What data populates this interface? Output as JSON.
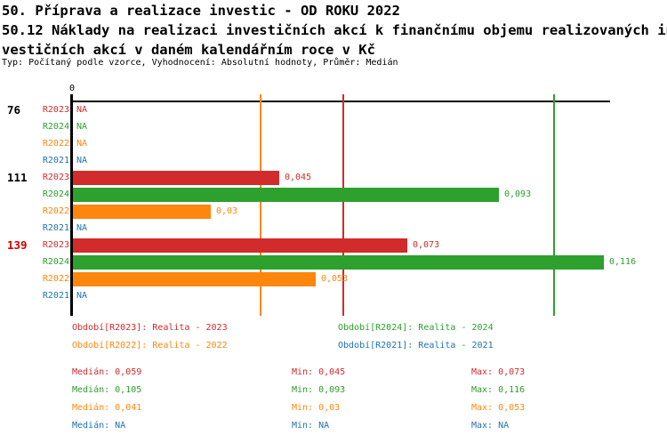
{
  "title": {
    "line1": "50. Příprava a realizace investic - OD ROKU 2022",
    "line2": "50.12 Náklady na realizaci investičních akcí k finančnímu objemu realizovaných in",
    "line3": "vestičních akcí v daném kalendářním roce v Kč",
    "meta": "Typ: Počítaný podle vzorce, Vyhodnocení: Absolutní hodnoty, Průměr: Medián"
  },
  "colors": {
    "title": "#008000",
    "R2023": "#d22b2b",
    "R2024": "#2da02d",
    "R2022": "#fd870d",
    "R2021": "#2073b0",
    "group_normal": "#000000",
    "group_highlight": "#d50000",
    "axis": "#000000"
  },
  "chart_data": {
    "type": "bar",
    "orientation": "horizontal",
    "title": "50.12 Náklady na realizaci investičních akcí k finančnímu objemu realizovaných investičních akcí v daném kalendářním roce v Kč",
    "axis": {
      "zero_label": "0",
      "xlim": [
        0,
        0.117
      ],
      "grid": "median-lines-only"
    },
    "series_order": [
      "R2023",
      "R2024",
      "R2022",
      "R2021"
    ],
    "na_text": "NA",
    "groups": [
      {
        "label": "76",
        "highlighted": false,
        "rows": [
          {
            "series": "R2023",
            "value": null,
            "label": "NA"
          },
          {
            "series": "R2024",
            "value": null,
            "label": "NA"
          },
          {
            "series": "R2022",
            "value": null,
            "label": "NA"
          },
          {
            "series": "R2021",
            "value": null,
            "label": "NA"
          }
        ]
      },
      {
        "label": "111",
        "highlighted": false,
        "rows": [
          {
            "series": "R2023",
            "value": 0.045,
            "label": "0,045"
          },
          {
            "series": "R2024",
            "value": 0.093,
            "label": "0,093"
          },
          {
            "series": "R2022",
            "value": 0.03,
            "label": "0,03"
          },
          {
            "series": "R2021",
            "value": null,
            "label": "NA"
          }
        ]
      },
      {
        "label": "139",
        "highlighted": true,
        "rows": [
          {
            "series": "R2023",
            "value": 0.073,
            "label": "0,073"
          },
          {
            "series": "R2024",
            "value": 0.116,
            "label": "0,116"
          },
          {
            "series": "R2022",
            "value": 0.053,
            "label": "0,053"
          },
          {
            "series": "R2021",
            "value": null,
            "label": "NA"
          }
        ]
      }
    ],
    "median_lines": {
      "R2023": 0.059,
      "R2024": 0.105,
      "R2022": 0.041
    }
  },
  "legend": {
    "left": [
      {
        "series": "R2023",
        "text": "Období[R2023]: Realita - 2023"
      },
      {
        "series": "R2022",
        "text": "Období[R2022]: Realita - 2022"
      }
    ],
    "right": [
      {
        "series": "R2024",
        "text": "Období[R2024]: Realita - 2024"
      },
      {
        "series": "R2021",
        "text": "Období[R2021]: Realita - 2021"
      }
    ]
  },
  "stats": {
    "columns": [
      {
        "name": "median",
        "rows": [
          {
            "series": "R2023",
            "text": "Medián: 0,059"
          },
          {
            "series": "R2024",
            "text": "Medián: 0,105"
          },
          {
            "series": "R2022",
            "text": "Medián: 0,041"
          },
          {
            "series": "R2021",
            "text": "Medián: NA"
          }
        ]
      },
      {
        "name": "min",
        "rows": [
          {
            "series": "R2023",
            "text": "Min: 0,045"
          },
          {
            "series": "R2024",
            "text": "Min: 0,093"
          },
          {
            "series": "R2022",
            "text": "Min: 0,03"
          },
          {
            "series": "R2021",
            "text": "Min: NA"
          }
        ]
      },
      {
        "name": "max",
        "rows": [
          {
            "series": "R2023",
            "text": "Max: 0,073"
          },
          {
            "series": "R2024",
            "text": "Max: 0,116"
          },
          {
            "series": "R2022",
            "text": "Max: 0,053"
          },
          {
            "series": "R2021",
            "text": "Max: NA"
          }
        ]
      }
    ]
  }
}
